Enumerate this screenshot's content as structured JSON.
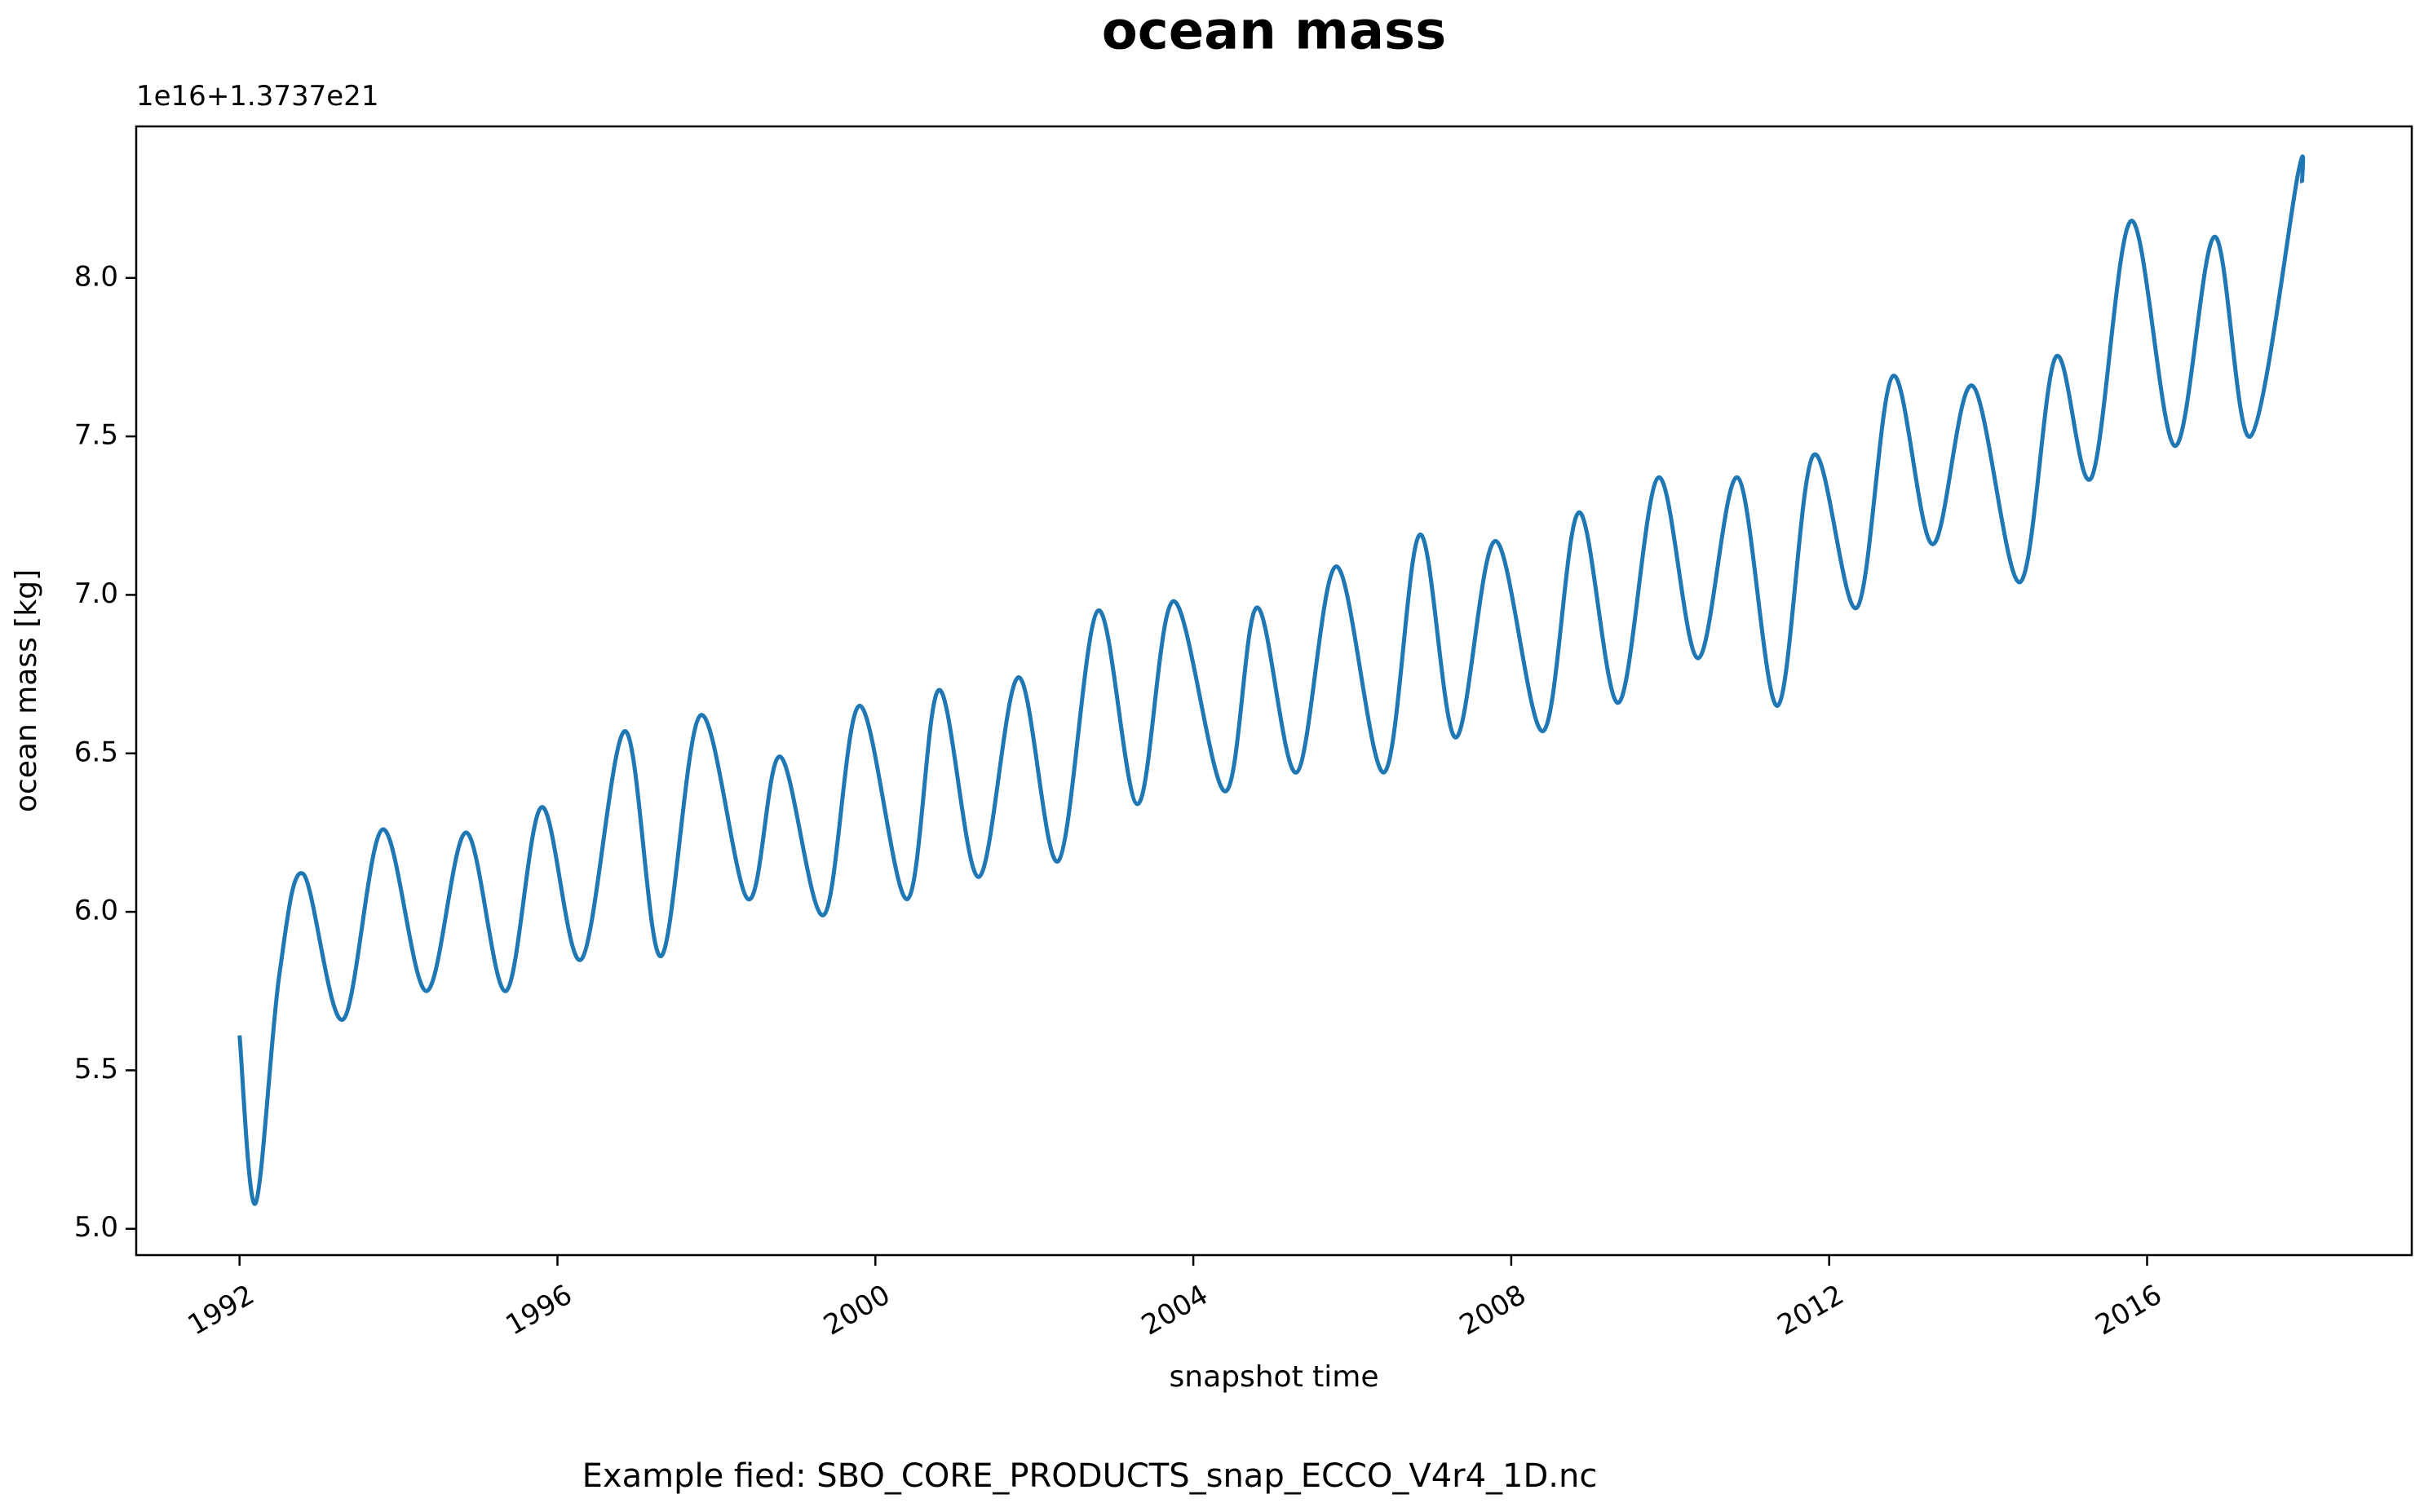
{
  "chart_data": {
    "type": "line",
    "title": "ocean mass",
    "y_offset_label": "1e16+1.3737e21",
    "xlabel": "snapshot time",
    "ylabel": "ocean mass [kg]",
    "footnote": "Example fied: SBO_CORE_PRODUCTS_snap_ECCO_V4r4_1D.nc",
    "xlim": [
      1990.7,
      2019.33
    ],
    "ylim": [
      4.917,
      8.478
    ],
    "xticks": [
      1992,
      1996,
      2000,
      2004,
      2008,
      2012,
      2016
    ],
    "yticks": [
      {
        "value": 5,
        "label": "5.0"
      },
      5.5,
      {
        "value": 6,
        "label": "6.0"
      },
      6.5,
      {
        "value": 7,
        "label": "7.0"
      },
      7.5,
      {
        "value": 8,
        "label": "8.0"
      }
    ],
    "x": [
      1992.0,
      1992.2,
      1992.5,
      1992.8,
      1993.3,
      1993.8,
      1994.35,
      1994.85,
      1995.35,
      1995.8,
      1996.3,
      1996.85,
      1997.3,
      1997.8,
      1998.4,
      1998.8,
      1999.35,
      1999.8,
      2000.4,
      2000.8,
      2001.3,
      2001.8,
      2002.3,
      2002.8,
      2003.3,
      2003.75,
      2004.4,
      2004.8,
      2005.3,
      2005.8,
      2006.4,
      2006.85,
      2007.3,
      2007.8,
      2008.4,
      2008.85,
      2009.35,
      2009.85,
      2010.35,
      2010.85,
      2011.35,
      2011.8,
      2012.35,
      2012.8,
      2013.3,
      2013.8,
      2014.4,
      2014.85,
      2015.3,
      2015.8,
      2016.35,
      2016.85,
      2017.3,
      2017.9,
      2017.95
    ],
    "series": [
      {
        "name": "ocean mass",
        "color": "#1f77b4",
        "values": [
          5.61,
          5.08,
          5.8,
          6.12,
          5.66,
          6.26,
          5.75,
          6.25,
          5.75,
          6.33,
          5.85,
          6.57,
          5.86,
          6.62,
          6.04,
          6.49,
          5.99,
          6.65,
          6.04,
          6.7,
          6.11,
          6.74,
          6.16,
          6.95,
          6.34,
          6.98,
          6.38,
          6.96,
          6.44,
          7.09,
          6.44,
          7.19,
          6.55,
          7.17,
          6.57,
          7.26,
          6.66,
          7.37,
          6.8,
          7.37,
          6.65,
          7.44,
          6.96,
          7.69,
          7.16,
          7.66,
          7.04,
          7.75,
          7.37,
          8.18,
          7.47,
          8.13,
          7.5,
          8.33,
          8.3
        ]
      }
    ]
  }
}
